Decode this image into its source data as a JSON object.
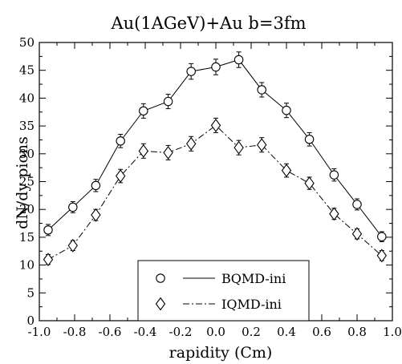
{
  "chart_data": {
    "type": "line",
    "title": "Au(1AGeV)+Au b=3fm",
    "xlabel": "rapidity (Cm)",
    "ylabel": "dN/dy pions",
    "xlim": [
      -1.0,
      1.0
    ],
    "ylim": [
      0,
      50
    ],
    "x_ticks": [
      "-1.0",
      "-0.8",
      "-0.6",
      "-0.4",
      "-0.2",
      "0.0",
      "0.2",
      "0.4",
      "0.6",
      "0.8",
      "1.0"
    ],
    "y_ticks": [
      "0",
      "5",
      "10",
      "15",
      "20",
      "25",
      "30",
      "35",
      "40",
      "45",
      "50"
    ],
    "grid": false,
    "legend_position": "bottom-center",
    "series": [
      {
        "name": "BQMD-ini",
        "marker": "circle",
        "line_style": "solid",
        "x": [
          -0.95,
          -0.81,
          -0.68,
          -0.54,
          -0.41,
          -0.27,
          -0.14,
          0.0,
          0.13,
          0.26,
          0.4,
          0.53,
          0.67,
          0.8,
          0.94
        ],
        "y": [
          16.3,
          20.4,
          24.3,
          32.3,
          37.7,
          39.4,
          44.8,
          45.6,
          46.9,
          41.5,
          37.8,
          32.6,
          26.2,
          20.9,
          15.1
        ],
        "err": [
          1.0,
          1.0,
          1.1,
          1.2,
          1.3,
          1.3,
          1.4,
          1.4,
          1.4,
          1.3,
          1.3,
          1.2,
          1.1,
          1.0,
          0.9
        ]
      },
      {
        "name": "IQMD-ini",
        "marker": "diamond",
        "line_style": "dash-dot",
        "x": [
          -0.95,
          -0.81,
          -0.68,
          -0.54,
          -0.41,
          -0.27,
          -0.14,
          0.0,
          0.13,
          0.26,
          0.4,
          0.53,
          0.67,
          0.8,
          0.94
        ],
        "y": [
          11.0,
          13.5,
          19.0,
          26.0,
          30.5,
          30.2,
          31.8,
          35.1,
          31.1,
          31.6,
          27.0,
          24.7,
          19.2,
          15.6,
          11.7
        ],
        "err": [
          0.9,
          0.9,
          1.0,
          1.2,
          1.3,
          1.3,
          1.3,
          1.3,
          1.3,
          1.3,
          1.2,
          1.1,
          1.0,
          0.9,
          0.9
        ]
      }
    ]
  }
}
